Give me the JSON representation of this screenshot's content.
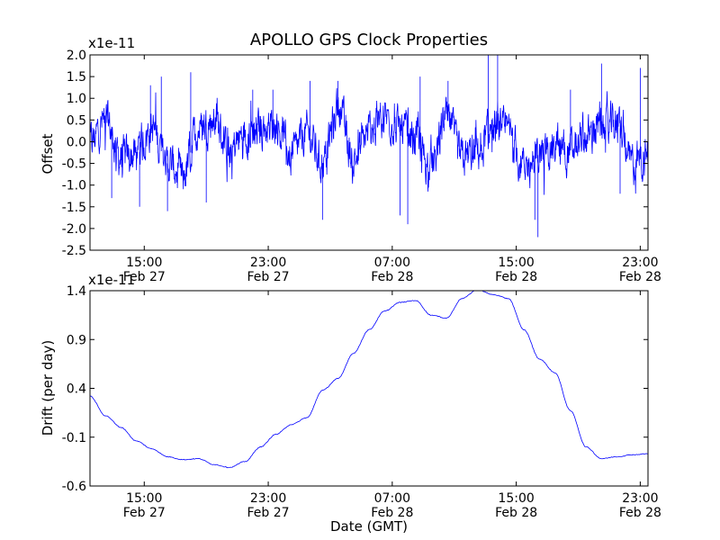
{
  "chart_data": {
    "title": "APOLLO GPS Clock Properties",
    "xlabel": "Date (GMT)",
    "x_ticks": [
      {
        "time": "15:00",
        "date": "Feb 27"
      },
      {
        "time": "23:00",
        "date": "Feb 27"
      },
      {
        "time": "07:00",
        "date": "Feb 28"
      },
      {
        "time": "15:00",
        "date": "Feb 28"
      },
      {
        "time": "23:00",
        "date": "Feb 28"
      }
    ],
    "xlim": [
      "Feb 27 11:30",
      "Feb 28 23:30"
    ],
    "line_color": "#0000ff",
    "subplots": [
      {
        "type": "line",
        "ylabel": "Offset",
        "exponent_label": "x1e-11",
        "ylim": [
          -2.5,
          2.0
        ],
        "y_ticks": [
          "2.0",
          "1.5",
          "1.0",
          "0.5",
          "0.0",
          "-0.5",
          "-1.0",
          "-1.5",
          "-2.0",
          "-2.5"
        ],
        "y_tick_values": [
          2.0,
          1.5,
          1.0,
          0.5,
          0.0,
          -0.5,
          -1.0,
          -1.5,
          -2.0,
          -2.5
        ],
        "series_hours": [
          0,
          1,
          2,
          3,
          4,
          5,
          6,
          7,
          8,
          9,
          10,
          11,
          12,
          13,
          14,
          15,
          16,
          17,
          18,
          19,
          20,
          21,
          22,
          23,
          24,
          25,
          26,
          27,
          28,
          29,
          30,
          31,
          32,
          33,
          34,
          35,
          36
        ],
        "values": [
          0.0,
          0.5,
          -0.4,
          -0.3,
          0.3,
          -0.5,
          -0.8,
          0.3,
          0.5,
          -0.2,
          0.2,
          0.3,
          0.4,
          -0.3,
          0.2,
          -0.5,
          0.8,
          -0.4,
          0.2,
          0.6,
          0.3,
          0.1,
          -0.6,
          0.5,
          -0.4,
          -0.2,
          0.3,
          0.2,
          -0.6,
          -0.3,
          0.0,
          -0.2,
          0.1,
          0.3,
          0.4,
          -0.5,
          -0.3
        ],
        "noise_amplitude": 0.45,
        "spikes": [
          {
            "hour": 1.4,
            "value": -1.3
          },
          {
            "hour": 3.2,
            "value": -1.5
          },
          {
            "hour": 3.9,
            "value": 1.3
          },
          {
            "hour": 4.6,
            "value": 1.5
          },
          {
            "hour": 5.0,
            "value": -1.6
          },
          {
            "hour": 6.5,
            "value": 1.6
          },
          {
            "hour": 7.5,
            "value": -1.4
          },
          {
            "hour": 10.5,
            "value": 1.2
          },
          {
            "hour": 11.8,
            "value": 1.2
          },
          {
            "hour": 14.2,
            "value": 1.4
          },
          {
            "hour": 15.0,
            "value": -1.8
          },
          {
            "hour": 16.0,
            "value": 1.4
          },
          {
            "hour": 20.0,
            "value": -1.7
          },
          {
            "hour": 20.5,
            "value": -1.9
          },
          {
            "hour": 21.3,
            "value": 1.5
          },
          {
            "hour": 23.1,
            "value": 1.4
          },
          {
            "hour": 25.7,
            "value": 2.0
          },
          {
            "hour": 26.3,
            "value": 2.0
          },
          {
            "hour": 28.9,
            "value": -2.2
          },
          {
            "hour": 28.7,
            "value": -1.8
          },
          {
            "hour": 31.0,
            "value": 1.2
          },
          {
            "hour": 33.0,
            "value": 1.8
          },
          {
            "hour": 34.2,
            "value": -1.2
          },
          {
            "hour": 35.5,
            "value": 1.7
          }
        ]
      },
      {
        "type": "line",
        "ylabel": "Drift (per day)",
        "exponent_label": "x1e-11",
        "ylim": [
          -0.6,
          1.4
        ],
        "y_ticks": [
          "1.4",
          "0.9",
          "0.4",
          "-0.1",
          "-0.6"
        ],
        "y_tick_values": [
          1.4,
          0.9,
          0.4,
          -0.1,
          -0.6
        ],
        "series_hours": [
          0,
          1,
          2,
          3,
          4,
          5,
          6,
          7,
          8,
          9,
          10,
          11,
          12,
          13,
          14,
          15,
          16,
          17,
          18,
          19,
          20,
          21,
          22,
          23,
          24,
          25,
          26,
          27,
          28,
          29,
          30,
          31,
          32,
          33,
          34,
          35,
          36
        ],
        "values": [
          0.32,
          0.12,
          0.0,
          -0.14,
          -0.22,
          -0.3,
          -0.33,
          -0.32,
          -0.38,
          -0.41,
          -0.35,
          -0.2,
          -0.07,
          0.03,
          0.1,
          0.38,
          0.5,
          0.76,
          1.0,
          1.19,
          1.28,
          1.3,
          1.15,
          1.12,
          1.32,
          1.41,
          1.36,
          1.32,
          1.0,
          0.7,
          0.56,
          0.17,
          -0.2,
          -0.32,
          -0.3,
          -0.28,
          -0.27
        ],
        "noise_amplitude": 0.008
      }
    ]
  }
}
